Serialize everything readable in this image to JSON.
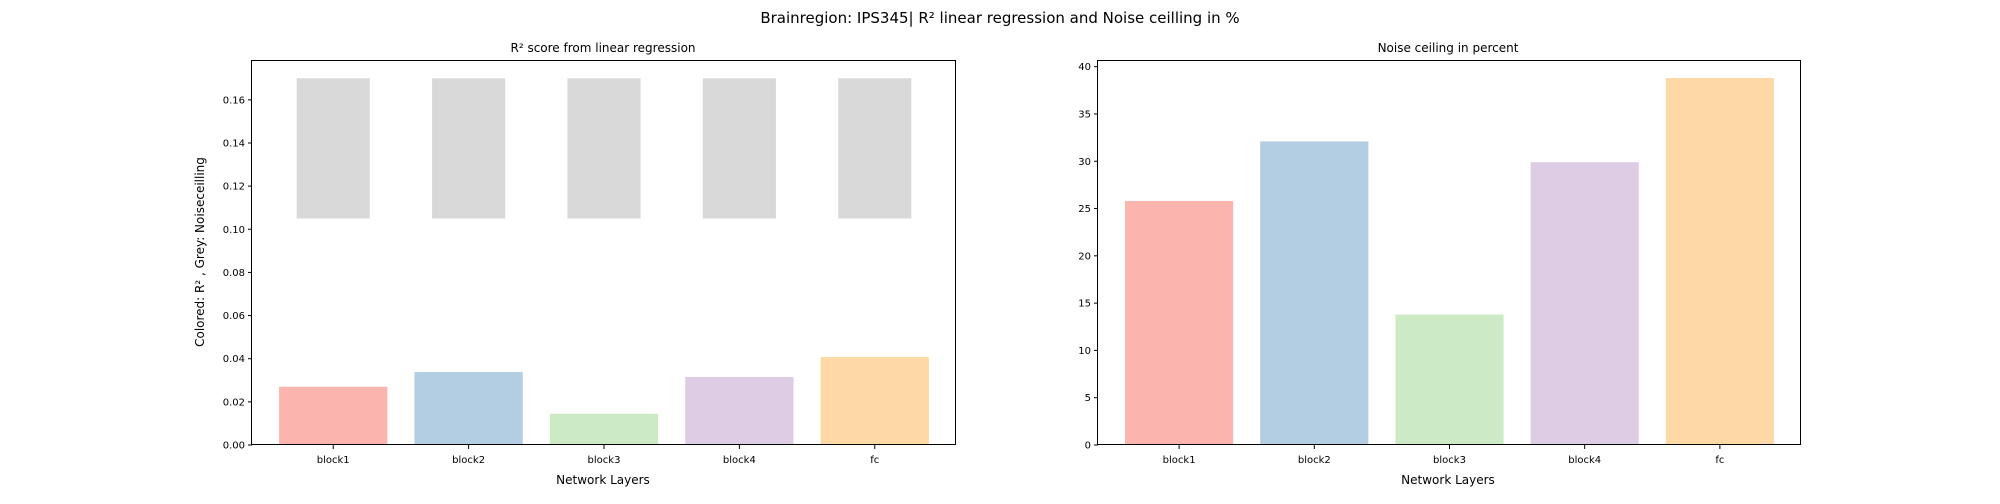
{
  "figure": {
    "title": "Brainregion: IPS345| R² linear regression and Noise ceilling in %"
  },
  "chart_data": [
    {
      "type": "bar",
      "title": "R² score from linear regression",
      "xlabel": "Network Layers",
      "ylabel": "Colored: R² , Grey: Noiseceilling",
      "categories": [
        "block1",
        "block2",
        "block3",
        "block4",
        "fc"
      ],
      "ylim": [
        0,
        0.178
      ],
      "yticks": [
        0.0,
        0.02,
        0.04,
        0.06,
        0.08,
        0.1,
        0.12,
        0.14,
        0.16
      ],
      "ytick_labels": [
        "0.00",
        "0.02",
        "0.04",
        "0.06",
        "0.08",
        "0.10",
        "0.12",
        "0.14",
        "0.16"
      ],
      "grid": false,
      "series": [
        {
          "values": [
            0.027,
            0.0338,
            0.0145,
            0.0315,
            0.0408
          ],
          "colors": [
            "#fbb4ae",
            "#b3cde3",
            "#ccebc5",
            "#decbe4",
            "#fed9a6"
          ]
        },
        {
          "floating": true,
          "bottom": [
            0.105,
            0.105,
            0.105,
            0.105,
            0.105
          ],
          "top": [
            0.17,
            0.17,
            0.17,
            0.17,
            0.17
          ],
          "color": "#d9d9d9"
        }
      ]
    },
    {
      "type": "bar",
      "title": "Noise ceiling in percent",
      "xlabel": "Network Layers",
      "ylabel": "",
      "categories": [
        "block1",
        "block2",
        "block3",
        "block4",
        "fc"
      ],
      "ylim": [
        0,
        40.6
      ],
      "yticks": [
        0,
        5,
        10,
        15,
        20,
        25,
        30,
        35,
        40
      ],
      "ytick_labels": [
        "0",
        "5",
        "10",
        "15",
        "20",
        "25",
        "30",
        "35",
        "40"
      ],
      "grid": false,
      "series": [
        {
          "values": [
            25.8,
            32.1,
            13.8,
            29.9,
            38.8
          ],
          "colors": [
            "#fbb4ae",
            "#b3cde3",
            "#ccebc5",
            "#decbe4",
            "#fed9a6"
          ]
        }
      ]
    }
  ]
}
